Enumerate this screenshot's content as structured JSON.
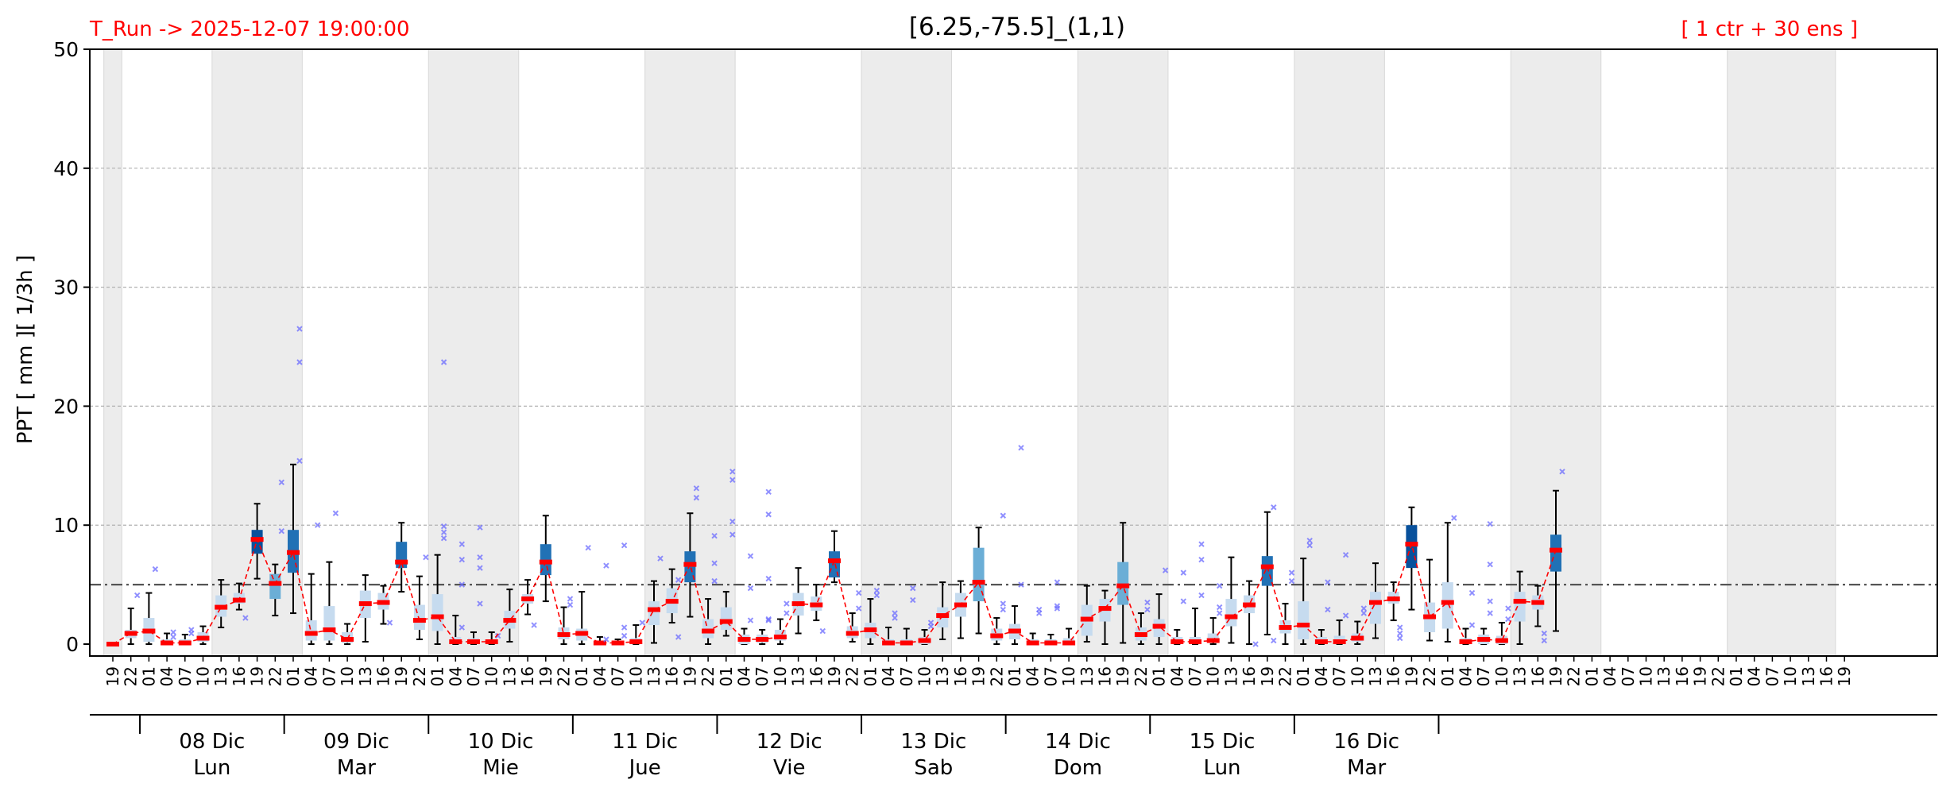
{
  "chart_data": {
    "type": "box",
    "title": "[6.25,-75.5]_(1,1)",
    "run_label": "T_Run -> 2025-12-07  19:00:00",
    "ensemble_label": "[ 1 ctr + 30 ens ]",
    "ylabel": "PPT  [ mm ][ 1/3h ]",
    "ylim": [
      -1,
      50
    ],
    "yticks": [
      0,
      10,
      20,
      30,
      40,
      50
    ],
    "grid": true,
    "threshold": 5,
    "colors": {
      "accent_text": "#ff0000",
      "median": "#ff0000",
      "mean_line": "#ff0000",
      "outlier": "#6b6bff",
      "threshold": "#555555",
      "shade": "#ececec",
      "box_light": "#c6dbef",
      "box_mid": "#6baed6",
      "box_dark": "#2171b5",
      "box_darkest": "#08519c"
    },
    "hours": [
      "19",
      "22",
      "01",
      "04",
      "07",
      "10",
      "13",
      "16",
      "19",
      "22",
      "01",
      "04",
      "07",
      "10",
      "13",
      "16",
      "19",
      "22",
      "01",
      "04",
      "07",
      "10",
      "13",
      "16",
      "19",
      "22",
      "01",
      "04",
      "07",
      "10",
      "13",
      "16",
      "19",
      "22",
      "01",
      "04",
      "07",
      "10",
      "13",
      "16",
      "19",
      "22",
      "01",
      "04",
      "07",
      "10",
      "13",
      "16",
      "19",
      "22",
      "01",
      "04",
      "07",
      "10",
      "13",
      "16",
      "19",
      "22",
      "01",
      "04",
      "07",
      "10",
      "13",
      "16",
      "19",
      "22",
      "01",
      "04",
      "07",
      "10",
      "13",
      "16",
      "19",
      "22",
      "01",
      "04",
      "07",
      "10",
      "13",
      "16",
      "19",
      "22",
      "01",
      "04",
      "07",
      "10",
      "13",
      "16",
      "19",
      "22",
      "01",
      "04",
      "07",
      "10",
      "13",
      "16",
      "19"
    ],
    "days": [
      {
        "date": "08 Dic",
        "weekday": "Lun"
      },
      {
        "date": "09 Dic",
        "weekday": "Mar"
      },
      {
        "date": "10 Dic",
        "weekday": "Mie"
      },
      {
        "date": "11 Dic",
        "weekday": "Jue"
      },
      {
        "date": "12 Dic",
        "weekday": "Vie"
      },
      {
        "date": "13 Dic",
        "weekday": "Sab"
      },
      {
        "date": "14 Dic",
        "weekday": "Dom"
      },
      {
        "date": "15 Dic",
        "weekday": "Lun"
      },
      {
        "date": "16 Dic",
        "weekday": "Mar"
      }
    ],
    "shaded_ranges": [
      [
        0,
        1
      ],
      [
        6,
        11
      ],
      [
        18,
        23
      ],
      [
        30,
        35
      ],
      [
        42,
        47
      ],
      [
        54,
        59
      ],
      [
        66,
        71
      ],
      [
        78,
        83
      ],
      [
        90,
        96
      ]
    ],
    "boxes": [
      {
        "lo": 0,
        "q1": 0,
        "med": 0,
        "q3": 0,
        "hi": 0,
        "c": "box_light",
        "out": []
      },
      {
        "lo": 0,
        "q1": 0.5,
        "med": 0.9,
        "q3": 1.2,
        "hi": 3,
        "c": "box_light",
        "out": [
          4.1
        ]
      },
      {
        "lo": 0,
        "q1": 0.2,
        "med": 1.1,
        "q3": 2.2,
        "hi": 4.3,
        "c": "box_light",
        "out": [
          6.3
        ]
      },
      {
        "lo": 0,
        "q1": 0,
        "med": 0.1,
        "q3": 0.4,
        "hi": 0.9,
        "c": "box_light",
        "out": [
          1.0,
          0.6
        ]
      },
      {
        "lo": 0,
        "q1": 0,
        "med": 0.1,
        "q3": 0.4,
        "hi": 0.8,
        "c": "box_light",
        "out": [
          1.2,
          0.9
        ]
      },
      {
        "lo": 0,
        "q1": 0.2,
        "med": 0.5,
        "q3": 1.0,
        "hi": 1.5,
        "c": "box_light",
        "out": []
      },
      {
        "lo": 1.4,
        "q1": 2.3,
        "med": 3.1,
        "q3": 4.1,
        "hi": 5.4,
        "c": "box_light",
        "out": []
      },
      {
        "lo": 2.9,
        "q1": 3.4,
        "med": 3.7,
        "q3": 4.3,
        "hi": 5.1,
        "c": "box_light",
        "out": [
          2.2
        ]
      },
      {
        "lo": 5.5,
        "q1": 7.6,
        "med": 8.8,
        "q3": 9.6,
        "hi": 11.8,
        "c": "box_darkest",
        "out": []
      },
      {
        "lo": 2.4,
        "q1": 3.8,
        "med": 5.1,
        "q3": 5.9,
        "hi": 6.7,
        "c": "box_mid",
        "out": [
          13.6,
          9.5
        ]
      },
      {
        "lo": 2.6,
        "q1": 6.0,
        "med": 7.7,
        "q3": 9.6,
        "hi": 15.1,
        "c": "box_dark",
        "out": [
          26.5,
          23.7,
          15.4
        ]
      },
      {
        "lo": 0,
        "q1": 0.3,
        "med": 0.9,
        "q3": 2.0,
        "hi": 5.9,
        "c": "box_light",
        "out": [
          10.0
        ]
      },
      {
        "lo": 0,
        "q1": 0.3,
        "med": 1.2,
        "q3": 3.2,
        "hi": 6.9,
        "c": "box_light",
        "out": [
          11.0
        ]
      },
      {
        "lo": 0,
        "q1": 0.1,
        "med": 0.4,
        "q3": 1.0,
        "hi": 1.7,
        "c": "box_light",
        "out": []
      },
      {
        "lo": 0.2,
        "q1": 2.2,
        "med": 3.4,
        "q3": 4.5,
        "hi": 5.8,
        "c": "box_light",
        "out": []
      },
      {
        "lo": 1.7,
        "q1": 2.9,
        "med": 3.5,
        "q3": 4.3,
        "hi": 4.9,
        "c": "box_light",
        "out": [
          1.8
        ]
      },
      {
        "lo": 4.4,
        "q1": 6.4,
        "med": 6.9,
        "q3": 8.6,
        "hi": 10.2,
        "c": "box_dark",
        "out": []
      },
      {
        "lo": 0.4,
        "q1": 1.2,
        "med": 2.0,
        "q3": 3.3,
        "hi": 5.7,
        "c": "box_light",
        "out": [
          7.3
        ]
      },
      {
        "lo": 0,
        "q1": 1.1,
        "med": 2.3,
        "q3": 4.2,
        "hi": 7.5,
        "c": "box_light",
        "out": [
          23.7,
          9.9,
          9.4,
          8.9
        ]
      },
      {
        "lo": 0,
        "q1": 0,
        "med": 0.2,
        "q3": 0.6,
        "hi": 2.4,
        "c": "box_light",
        "out": [
          8.4,
          7.1,
          5.0,
          1.4
        ]
      },
      {
        "lo": 0,
        "q1": 0,
        "med": 0.2,
        "q3": 0.5,
        "hi": 1.0,
        "c": "box_light",
        "out": [
          9.8,
          7.3,
          6.4,
          3.4
        ]
      },
      {
        "lo": 0,
        "q1": 0,
        "med": 0.2,
        "q3": 0.4,
        "hi": 1.0,
        "c": "box_light",
        "out": [
          0.7
        ]
      },
      {
        "lo": 0.2,
        "q1": 1.3,
        "med": 2.0,
        "q3": 2.8,
        "hi": 4.6,
        "c": "box_light",
        "out": []
      },
      {
        "lo": 2.5,
        "q1": 3.4,
        "med": 3.8,
        "q3": 4.2,
        "hi": 5.4,
        "c": "box_light",
        "out": [
          1.6
        ]
      },
      {
        "lo": 3.6,
        "q1": 5.8,
        "med": 6.9,
        "q3": 8.4,
        "hi": 10.8,
        "c": "box_dark",
        "out": []
      },
      {
        "lo": 0,
        "q1": 0.4,
        "med": 0.8,
        "q3": 1.4,
        "hi": 3.1,
        "c": "box_light",
        "out": [
          3.8,
          3.3
        ]
      },
      {
        "lo": 0,
        "q1": 0.3,
        "med": 0.9,
        "q3": 1.3,
        "hi": 4.4,
        "c": "box_light",
        "out": [
          8.1
        ]
      },
      {
        "lo": 0,
        "q1": 0,
        "med": 0.1,
        "q3": 0.2,
        "hi": 0.6,
        "c": "box_light",
        "out": [
          6.6,
          0.4
        ]
      },
      {
        "lo": 0,
        "q1": 0,
        "med": 0.1,
        "q3": 0.2,
        "hi": 0.4,
        "c": "box_light",
        "out": [
          8.3,
          1.4,
          0.7
        ]
      },
      {
        "lo": 0,
        "q1": 0,
        "med": 0.2,
        "q3": 0.5,
        "hi": 1.6,
        "c": "box_light",
        "out": [
          1.8
        ]
      },
      {
        "lo": 0.1,
        "q1": 1.6,
        "med": 2.9,
        "q3": 3.6,
        "hi": 5.3,
        "c": "box_light",
        "out": [
          7.2
        ]
      },
      {
        "lo": 1.8,
        "q1": 2.6,
        "med": 3.6,
        "q3": 4.7,
        "hi": 6.3,
        "c": "box_light",
        "out": [
          5.4,
          0.6
        ]
      },
      {
        "lo": 2.3,
        "q1": 5.2,
        "med": 6.7,
        "q3": 7.8,
        "hi": 11.0,
        "c": "box_dark",
        "out": [
          13.1,
          12.3
        ]
      },
      {
        "lo": 0,
        "q1": 0.5,
        "med": 1.1,
        "q3": 2.1,
        "hi": 3.8,
        "c": "box_light",
        "out": [
          9.1,
          6.8,
          5.3
        ]
      },
      {
        "lo": 0.7,
        "q1": 1.2,
        "med": 1.9,
        "q3": 3.1,
        "hi": 4.4,
        "c": "box_light",
        "out": [
          14.5,
          13.8,
          10.3,
          9.2
        ]
      },
      {
        "lo": 0,
        "q1": 0,
        "med": 0.4,
        "q3": 0.8,
        "hi": 1.3,
        "c": "box_light",
        "out": [
          7.4,
          4.7,
          2.0
        ]
      },
      {
        "lo": 0,
        "q1": 0.1,
        "med": 0.4,
        "q3": 0.8,
        "hi": 1.2,
        "c": "box_light",
        "out": [
          12.8,
          10.9,
          5.5,
          2.1,
          2.0
        ]
      },
      {
        "lo": 0,
        "q1": 0.3,
        "med": 0.6,
        "q3": 1.2,
        "hi": 2.1,
        "c": "box_light",
        "out": [
          3.4,
          2.6
        ]
      },
      {
        "lo": 0.9,
        "q1": 2.4,
        "med": 3.4,
        "q3": 4.3,
        "hi": 6.4,
        "c": "box_light",
        "out": []
      },
      {
        "lo": 2.0,
        "q1": 2.8,
        "med": 3.3,
        "q3": 4.0,
        "hi": 5.0,
        "c": "box_light",
        "out": [
          1.1
        ]
      },
      {
        "lo": 5.2,
        "q1": 5.6,
        "med": 7.0,
        "q3": 7.8,
        "hi": 9.5,
        "c": "box_dark",
        "out": []
      },
      {
        "lo": 0.2,
        "q1": 0.5,
        "med": 0.9,
        "q3": 1.5,
        "hi": 2.6,
        "c": "box_light",
        "out": [
          4.3,
          3.0
        ]
      },
      {
        "lo": 0,
        "q1": 0.5,
        "med": 1.2,
        "q3": 1.8,
        "hi": 3.8,
        "c": "box_light",
        "out": [
          4.5,
          4.1
        ]
      },
      {
        "lo": 0,
        "q1": 0,
        "med": 0.1,
        "q3": 0.4,
        "hi": 1.4,
        "c": "box_light",
        "out": [
          2.6,
          2.2
        ]
      },
      {
        "lo": 0,
        "q1": 0,
        "med": 0.1,
        "q3": 0.4,
        "hi": 1.3,
        "c": "box_light",
        "out": [
          4.7,
          3.7
        ]
      },
      {
        "lo": 0,
        "q1": 0,
        "med": 0.3,
        "q3": 0.6,
        "hi": 1.2,
        "c": "box_light",
        "out": [
          1.8,
          1.5
        ]
      },
      {
        "lo": 0.4,
        "q1": 1.4,
        "med": 2.4,
        "q3": 3.1,
        "hi": 5.2,
        "c": "box_light",
        "out": []
      },
      {
        "lo": 0.5,
        "q1": 2.3,
        "med": 3.3,
        "q3": 4.3,
        "hi": 5.3,
        "c": "box_light",
        "out": []
      },
      {
        "lo": 0.9,
        "q1": 3.6,
        "med": 5.2,
        "q3": 8.1,
        "hi": 9.8,
        "c": "box_mid",
        "out": []
      },
      {
        "lo": 0,
        "q1": 0.3,
        "med": 0.7,
        "q3": 1.3,
        "hi": 2.2,
        "c": "box_light",
        "out": [
          10.8,
          3.4,
          2.9
        ]
      },
      {
        "lo": 0,
        "q1": 0.4,
        "med": 1.1,
        "q3": 1.7,
        "hi": 3.2,
        "c": "box_light",
        "out": [
          16.5,
          5.0
        ]
      },
      {
        "lo": 0,
        "q1": 0,
        "med": 0.1,
        "q3": 0.4,
        "hi": 0.9,
        "c": "box_light",
        "out": [
          2.9,
          2.6
        ]
      },
      {
        "lo": 0,
        "q1": 0,
        "med": 0.1,
        "q3": 0.4,
        "hi": 0.8,
        "c": "box_light",
        "out": [
          5.2,
          3.2,
          3.0
        ]
      },
      {
        "lo": 0,
        "q1": 0,
        "med": 0.1,
        "q3": 0.5,
        "hi": 1.3,
        "c": "box_light",
        "out": []
      },
      {
        "lo": 0.2,
        "q1": 0.7,
        "med": 2.1,
        "q3": 3.3,
        "hi": 4.9,
        "c": "box_light",
        "out": []
      },
      {
        "lo": 0,
        "q1": 1.9,
        "med": 3.0,
        "q3": 3.8,
        "hi": 4.5,
        "c": "box_light",
        "out": []
      },
      {
        "lo": 0.1,
        "q1": 3.3,
        "med": 4.9,
        "q3": 6.9,
        "hi": 10.2,
        "c": "box_mid",
        "out": []
      },
      {
        "lo": 0,
        "q1": 0.3,
        "med": 0.8,
        "q3": 1.4,
        "hi": 2.6,
        "c": "box_light",
        "out": [
          3.5,
          2.9
        ]
      },
      {
        "lo": 0,
        "q1": 0.6,
        "med": 1.5,
        "q3": 2.1,
        "hi": 4.2,
        "c": "box_light",
        "out": [
          6.2
        ]
      },
      {
        "lo": 0,
        "q1": 0,
        "med": 0.2,
        "q3": 0.6,
        "hi": 1.2,
        "c": "box_light",
        "out": [
          6.0,
          3.6
        ]
      },
      {
        "lo": 0,
        "q1": 0,
        "med": 0.2,
        "q3": 0.6,
        "hi": 3.0,
        "c": "box_light",
        "out": [
          8.4,
          7.1,
          4.1
        ]
      },
      {
        "lo": 0,
        "q1": 0.2,
        "med": 0.3,
        "q3": 0.9,
        "hi": 2.2,
        "c": "box_light",
        "out": [
          4.9,
          3.1,
          2.6
        ]
      },
      {
        "lo": 0.1,
        "q1": 1.5,
        "med": 2.3,
        "q3": 3.8,
        "hi": 7.3,
        "c": "box_light",
        "out": []
      },
      {
        "lo": 0,
        "q1": 2.6,
        "med": 3.3,
        "q3": 4.1,
        "hi": 5.3,
        "c": "box_light",
        "out": [
          0
        ]
      },
      {
        "lo": 0.8,
        "q1": 4.9,
        "med": 6.5,
        "q3": 7.4,
        "hi": 11.1,
        "c": "box_dark",
        "out": [
          11.5,
          0.3
        ]
      },
      {
        "lo": 0,
        "q1": 0.9,
        "med": 1.4,
        "q3": 2.0,
        "hi": 3.4,
        "c": "box_light",
        "out": [
          6.0,
          5.3
        ]
      },
      {
        "lo": 0,
        "q1": 0.4,
        "med": 1.6,
        "q3": 3.6,
        "hi": 7.2,
        "c": "box_light",
        "out": [
          8.7,
          8.3
        ]
      },
      {
        "lo": 0,
        "q1": 0,
        "med": 0.2,
        "q3": 0.6,
        "hi": 1.2,
        "c": "box_light",
        "out": [
          5.2,
          2.9
        ]
      },
      {
        "lo": 0,
        "q1": 0,
        "med": 0.2,
        "q3": 0.7,
        "hi": 2.0,
        "c": "box_light",
        "out": [
          7.5,
          2.4
        ]
      },
      {
        "lo": 0,
        "q1": 0.2,
        "med": 0.5,
        "q3": 0.9,
        "hi": 1.9,
        "c": "box_light",
        "out": [
          3.0,
          2.6
        ]
      },
      {
        "lo": 0.5,
        "q1": 1.7,
        "med": 3.5,
        "q3": 4.4,
        "hi": 6.8,
        "c": "box_light",
        "out": []
      },
      {
        "lo": 2.0,
        "q1": 3.4,
        "med": 3.8,
        "q3": 4.4,
        "hi": 5.2,
        "c": "box_light",
        "out": [
          1.4,
          0.9,
          0.5
        ]
      },
      {
        "lo": 2.9,
        "q1": 6.4,
        "med": 8.4,
        "q3": 10.0,
        "hi": 11.5,
        "c": "box_darkest",
        "out": []
      },
      {
        "lo": 0.3,
        "q1": 1.0,
        "med": 2.3,
        "q3": 3.5,
        "hi": 7.1,
        "c": "box_light",
        "out": []
      },
      {
        "lo": 0.2,
        "q1": 1.3,
        "med": 3.5,
        "q3": 5.2,
        "hi": 10.2,
        "c": "box_light",
        "out": [
          10.6
        ]
      },
      {
        "lo": 0,
        "q1": 0,
        "med": 0.2,
        "q3": 0.5,
        "hi": 1.3,
        "c": "box_light",
        "out": [
          4.3,
          1.6
        ]
      },
      {
        "lo": 0,
        "q1": 0,
        "med": 0.4,
        "q3": 0.8,
        "hi": 1.3,
        "c": "box_light",
        "out": [
          10.1,
          6.7,
          3.6,
          2.6
        ]
      },
      {
        "lo": 0,
        "q1": 0,
        "med": 0.3,
        "q3": 0.7,
        "hi": 1.8,
        "c": "box_light",
        "out": [
          3.0,
          2.1
        ]
      },
      {
        "lo": 0,
        "q1": 1.9,
        "med": 3.6,
        "q3": 4.4,
        "hi": 6.1,
        "c": "box_light",
        "out": []
      },
      {
        "lo": 1.5,
        "q1": 2.9,
        "med": 3.5,
        "q3": 4.1,
        "hi": 4.9,
        "c": "box_light",
        "out": [
          0.9,
          0.3
        ]
      },
      {
        "lo": 1.1,
        "q1": 6.1,
        "med": 7.9,
        "q3": 9.2,
        "hi": 12.9,
        "c": "box_dark",
        "out": [
          14.5
        ]
      }
    ]
  }
}
